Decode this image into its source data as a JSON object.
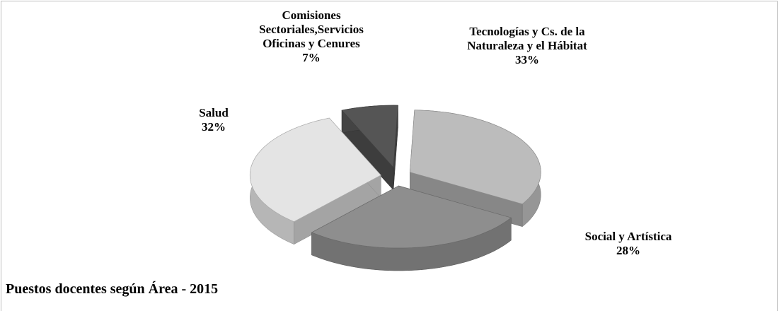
{
  "chart_data": {
    "type": "pie3d",
    "title": "Puestos docentes según Área - 2015",
    "categories": [
      "Tecnologías y Cs. de la Naturaleza y el Hábitat",
      "Social y Artística",
      "Salud",
      "Comisiones Sectoriales,Servicios Oficinas y Cenures"
    ],
    "values": [
      33,
      28,
      32,
      7
    ],
    "value_labels": [
      "33%",
      "28%",
      "32%",
      "7%"
    ],
    "colors": [
      "#bcbcbc",
      "#8e8e8e",
      "#e4e4e4",
      "#555555"
    ]
  }
}
